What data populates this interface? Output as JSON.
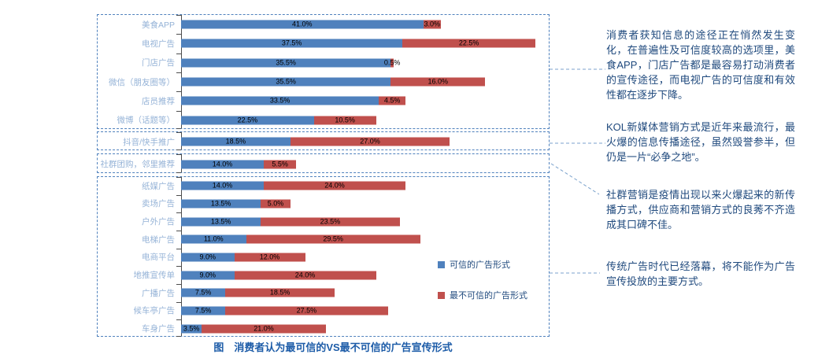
{
  "figure_title": "图　消费者认为最可信的VS最不可信的广告宣传形式",
  "chart_data": {
    "type": "bar",
    "orientation": "horizontal",
    "stacked": true,
    "unit": "%",
    "value_label_format": "0.0%",
    "axis_range_percent": [
      0,
      61
    ],
    "grid": false,
    "legend_position": "middle-right-inside-bottom-box",
    "categories": [
      "美食APP",
      "电视广告",
      "门店广告",
      "微信（朋友圈等）",
      "店员推荐",
      "微博（话题等）",
      "抖音/快手推广",
      "社群团购，邻里推荐",
      "纸媒广告",
      "卖场广告",
      "户外广告",
      "电梯广告",
      "电商平台",
      "地推宣传单",
      "广播广告",
      "候车亭广告",
      "车身广告"
    ],
    "series": [
      {
        "name": "可信的广告形式",
        "color": "#4f81bd",
        "values": [
          41.0,
          37.5,
          35.5,
          35.5,
          33.5,
          22.5,
          18.5,
          14.0,
          14.0,
          13.5,
          13.5,
          11.0,
          9.0,
          9.0,
          7.5,
          7.5,
          3.5
        ]
      },
      {
        "name": "最不可信的广告形式",
        "color": "#c0504d",
        "values": [
          3.0,
          22.5,
          0.5,
          16.0,
          4.5,
          10.5,
          27.0,
          5.5,
          24.0,
          5.0,
          23.5,
          29.5,
          12.0,
          24.0,
          18.5,
          27.5,
          21.0
        ]
      }
    ],
    "value_labels": {
      "trusted": [
        "41.0%",
        "37.5%",
        "35.5%",
        "35.5%",
        "33.5%",
        "22.5%",
        "18.5%",
        "14.0%",
        "14.0%",
        "13.5%",
        "13.5%",
        "11.0%",
        "9.0%",
        "9.0%",
        "7.5%",
        "7.5%",
        "3.5%"
      ],
      "untrusted": [
        "3.0%",
        "22.5%",
        "0.5%",
        "16.0%",
        "4.5%",
        "10.5%",
        "27.0%",
        "5.5%",
        "24.0%",
        "5.0%",
        "23.5%",
        "29.5%",
        "12.0%",
        "24.0%",
        "18.5%",
        "27.5%",
        "21.0%"
      ]
    },
    "group_row_counts": [
      6,
      1,
      1,
      9
    ]
  },
  "annotations": [
    {
      "text": "消费者获知信息的途径正在悄然发生变化，在普遍性及可信度较高的选项里，美食APP，门店广告都是最容易打动消费者的宣传途径，而电视广告的可信度和有效性都在逐步下降。"
    },
    {
      "text": "KOL新媒体营销方式是近年来最流行，最火爆的信息传播途径，虽然毁誉参半，但仍是一片“必争之地”。"
    },
    {
      "text": "社群营销是疫情出现以来火爆起来的新传播方式，供应商和营销方式的良莠不齐造成其口碑不佳。"
    },
    {
      "text": "传统广告时代已经落幕，将不能作为广告宣传投放的主要方式。"
    }
  ],
  "colors": {
    "trusted_bar": "#4f81bd",
    "untrusted_bar": "#c0504d",
    "category_label": "#95b3d7",
    "annotation_text": "#1f497d",
    "box_border": "#4f81bd",
    "caption": "#1d5ca8",
    "value_label": "#000000"
  }
}
